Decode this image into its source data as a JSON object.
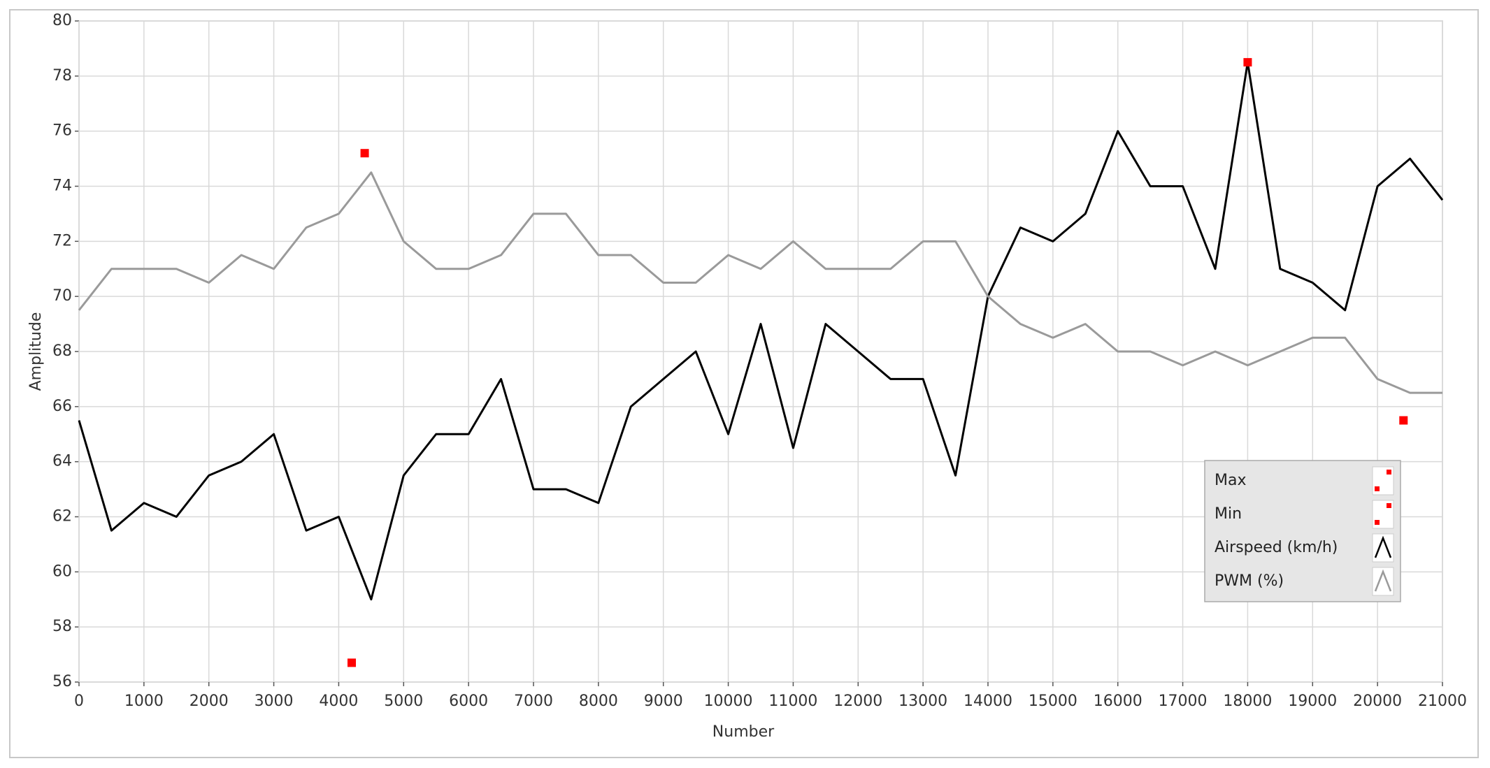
{
  "chart_data": {
    "type": "line",
    "x_label": "Number",
    "y_label": "Amplitude",
    "xlim": [
      0,
      21000
    ],
    "xticks": [
      0,
      1000,
      2000,
      3000,
      4000,
      5000,
      6000,
      7000,
      8000,
      9000,
      10000,
      11000,
      12000,
      13000,
      14000,
      15000,
      16000,
      17000,
      18000,
      19000,
      20000,
      21000
    ],
    "ylim": [
      56,
      80
    ],
    "yticks": [
      56,
      58,
      60,
      62,
      64,
      66,
      68,
      70,
      72,
      74,
      76,
      78,
      80
    ],
    "grid": true,
    "legend": "lower right",
    "x": [
      0,
      500,
      1000,
      1500,
      2000,
      2500,
      3000,
      3500,
      4000,
      4500,
      5000,
      5500,
      6000,
      6500,
      7000,
      7500,
      8000,
      8500,
      9000,
      9500,
      10000,
      10500,
      11000,
      11500,
      12000,
      12500,
      13000,
      13500,
      14000,
      14500,
      15000,
      15500,
      16000,
      16500,
      17000,
      17500,
      18000,
      18500,
      19000,
      19500,
      20000,
      20500,
      21000
    ],
    "markers": [
      {
        "name": "Max",
        "color": "#ff0000",
        "x": [
          4400,
          18000
        ],
        "values": [
          75.2,
          78.5
        ]
      },
      {
        "name": "Min",
        "color": "#ff0000",
        "x": [
          4200,
          20400
        ],
        "values": [
          56.7,
          65.5
        ]
      }
    ],
    "series": [
      {
        "name": "Airspeed (km/h)",
        "color": "#000000",
        "values": [
          65.5,
          61.5,
          62.5,
          62,
          63.5,
          64,
          65,
          61.5,
          62,
          59,
          63.5,
          65,
          65,
          67,
          63,
          63,
          62.5,
          66,
          67,
          68,
          65,
          69,
          64.5,
          69,
          68,
          67,
          67,
          63.5,
          70,
          72.5,
          72,
          73,
          76,
          74,
          74,
          71,
          78.5,
          71,
          70.5,
          69.5,
          74,
          75,
          73.5
        ]
      },
      {
        "name": "PWM (%)",
        "color": "#9a9a9a",
        "values": [
          69.5,
          71,
          71,
          71,
          70.5,
          71.5,
          71,
          72.5,
          73,
          74.5,
          72,
          71,
          71,
          71.5,
          73,
          73,
          71.5,
          71.5,
          70.5,
          70.5,
          71.5,
          71,
          72,
          71,
          71,
          71,
          72,
          72,
          70,
          69,
          68.5,
          69,
          68,
          68,
          67.5,
          68,
          67.5,
          68,
          68.5,
          68.5,
          67,
          66.5,
          66.5
        ]
      }
    ]
  }
}
